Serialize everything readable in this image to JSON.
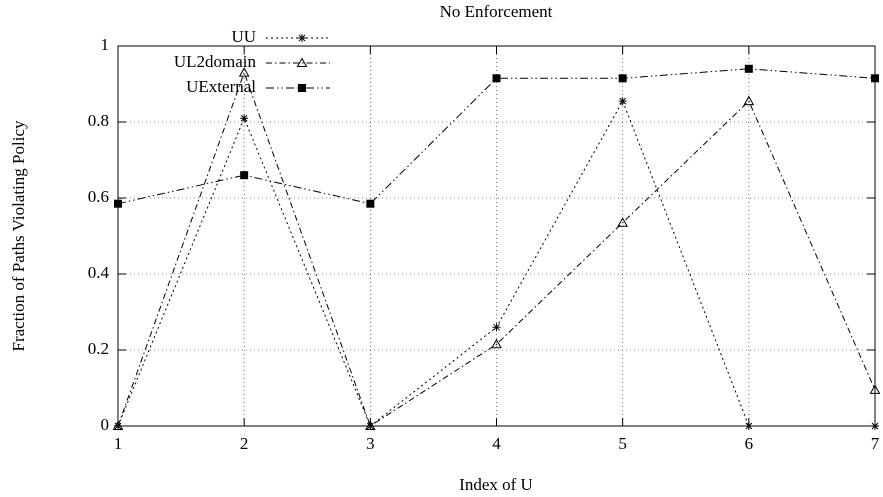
{
  "chart_data": {
    "type": "line",
    "title": "No Enforcement",
    "x_label": "Index of U",
    "y_label": "Fraction of Paths Violating Policy",
    "x": [
      1,
      2,
      3,
      4,
      5,
      6,
      7
    ],
    "xlim": [
      1,
      7
    ],
    "xticks": [
      1,
      2,
      3,
      4,
      5,
      6,
      7
    ],
    "ylim": [
      0,
      1
    ],
    "yticks": [
      0,
      0.2,
      0.4,
      0.6,
      0.8,
      1
    ],
    "grid": true,
    "legend": "upper left",
    "series": [
      {
        "name": "UU",
        "color": "#000000",
        "marker": "star",
        "dash": "dotted",
        "values": [
          0,
          0.81,
          0,
          0.26,
          0.855,
          0,
          0
        ]
      },
      {
        "name": "UL2domain",
        "color": "#000000",
        "marker": "triangle",
        "dash": "dashdot",
        "values": [
          0,
          0.93,
          0,
          0.215,
          0.535,
          0.855,
          0.095
        ]
      },
      {
        "name": "UExternal",
        "color": "#000000",
        "marker": "square",
        "dash": "dashdotdot",
        "values": [
          0.585,
          0.66,
          0.585,
          0.915,
          0.915,
          0.94,
          0.915
        ]
      }
    ]
  }
}
